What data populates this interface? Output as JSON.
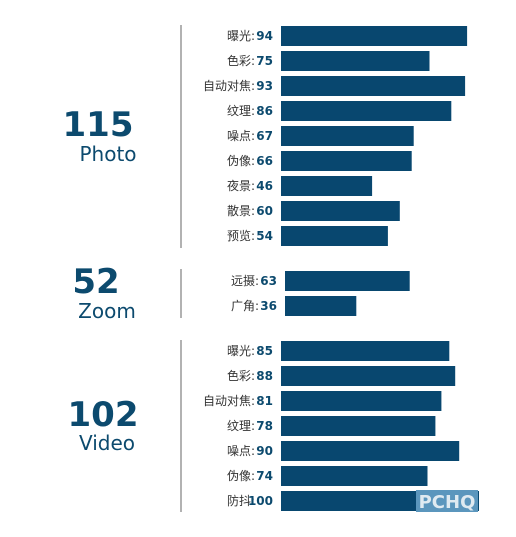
{
  "colors": {
    "bar": "#08476f",
    "score": "#0c4a6e",
    "divider": "#666666",
    "watermark_bg": "#5b96bd"
  },
  "watermark": "PCHQ",
  "chart_data": [
    {
      "type": "bar",
      "orientation": "horizontal",
      "score": "115",
      "category": "Photo",
      "categories": [
        "曝光",
        "色彩",
        "自动对焦",
        "纹理",
        "噪点",
        "伪像",
        "夜景",
        "散景",
        "预览"
      ],
      "values": [
        94,
        75,
        93,
        86,
        67,
        66,
        46,
        60,
        54
      ]
    },
    {
      "type": "bar",
      "orientation": "horizontal",
      "score": "52",
      "category": "Zoom",
      "categories": [
        "远摄",
        "广角"
      ],
      "values": [
        63,
        36
      ]
    },
    {
      "type": "bar",
      "orientation": "horizontal",
      "score": "102",
      "category": "Video",
      "categories": [
        "曝光",
        "色彩",
        "自动对焦",
        "纹理",
        "噪点",
        "伪像",
        "防抖"
      ],
      "values": [
        85,
        88,
        81,
        78,
        90,
        74,
        100
      ]
    }
  ]
}
